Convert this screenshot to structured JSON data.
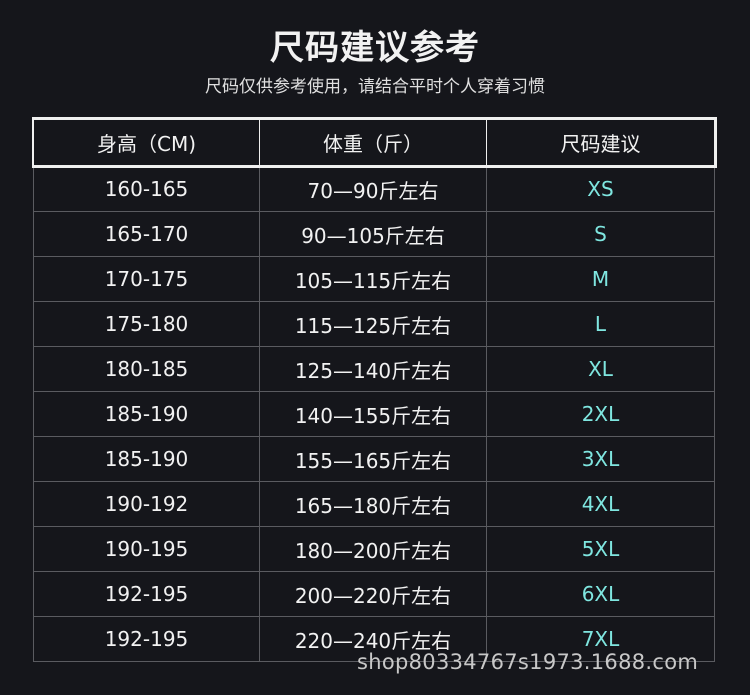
{
  "title": "尺码建议参考",
  "subtitle": "尺码仅供参考使用，请结合平时个人穿着习惯",
  "table": {
    "headers": [
      "身高（CM)",
      "体重（斤）",
      "尺码建议"
    ],
    "rows": [
      [
        "160-165",
        "70—90斤左右",
        "XS"
      ],
      [
        "165-170",
        "90—105斤左右",
        "S"
      ],
      [
        "170-175",
        "105—115斤左右",
        "M"
      ],
      [
        "175-180",
        "115—125斤左右",
        "L"
      ],
      [
        "180-185",
        "125—140斤左右",
        "XL"
      ],
      [
        "185-190",
        "140—155斤左右",
        "2XL"
      ],
      [
        "185-190",
        "155—165斤左右",
        "3XL"
      ],
      [
        "190-192",
        "165—180斤左右",
        "4XL"
      ],
      [
        "190-195",
        "180—200斤左右",
        "5XL"
      ],
      [
        "192-195",
        "200—220斤左右",
        "6XL"
      ],
      [
        "192-195",
        "220—240斤左右",
        "7XL"
      ]
    ]
  },
  "watermark": "shop80334767s1973.1688.com",
  "colors": {
    "background": "#15161b",
    "size_text": "#7fe6e0"
  }
}
